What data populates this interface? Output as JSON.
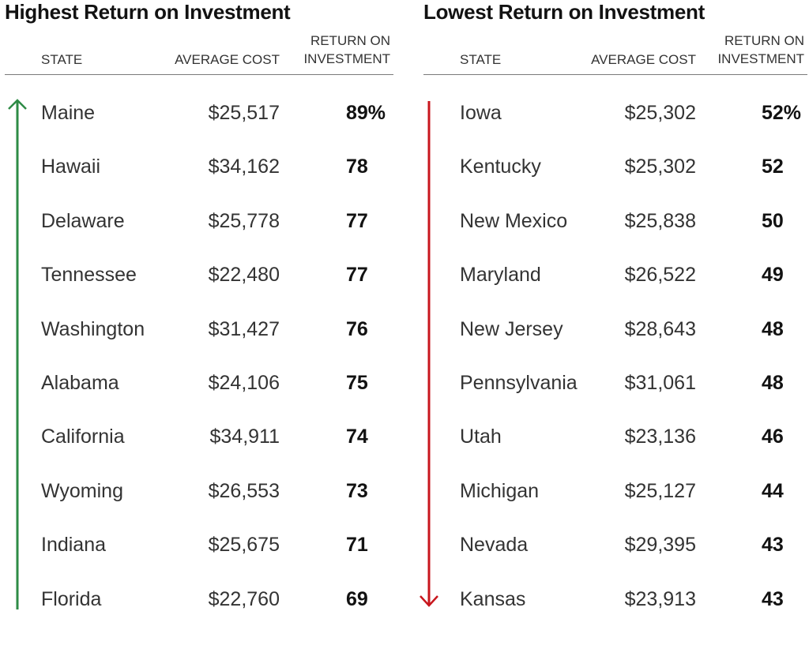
{
  "colors": {
    "up_arrow": "#2e8b46",
    "down_arrow": "#c8161d",
    "text": "#222222",
    "rule": "#7a7a7a"
  },
  "chart_data": [
    {
      "type": "table",
      "title": "Highest Return on Investment",
      "columns": [
        "STATE",
        "AVERAGE COST",
        "RETURN ON INVESTMENT"
      ],
      "arrow": "up-arrow",
      "rows": [
        {
          "state": "Maine",
          "cost": "$25,517",
          "roi": "89%"
        },
        {
          "state": "Hawaii",
          "cost": "$34,162",
          "roi": "78"
        },
        {
          "state": "Delaware",
          "cost": "$25,778",
          "roi": "77"
        },
        {
          "state": "Tennessee",
          "cost": "$22,480",
          "roi": "77"
        },
        {
          "state": "Washington",
          "cost": "$31,427",
          "roi": "76"
        },
        {
          "state": "Alabama",
          "cost": "$24,106",
          "roi": "75"
        },
        {
          "state": "California",
          "cost": "$34,911",
          "roi": "74"
        },
        {
          "state": "Wyoming",
          "cost": "$26,553",
          "roi": "73"
        },
        {
          "state": "Indiana",
          "cost": "$25,675",
          "roi": "71"
        },
        {
          "state": "Florida",
          "cost": "$22,760",
          "roi": "69"
        }
      ]
    },
    {
      "type": "table",
      "title": "Lowest Return on Investment",
      "columns": [
        "STATE",
        "AVERAGE COST",
        "RETURN ON INVESTMENT"
      ],
      "arrow": "down-arrow",
      "rows": [
        {
          "state": "Iowa",
          "cost": "$25,302",
          "roi": "52%"
        },
        {
          "state": "Kentucky",
          "cost": "$25,302",
          "roi": "52"
        },
        {
          "state": "New Mexico",
          "cost": "$25,838",
          "roi": "50"
        },
        {
          "state": "Maryland",
          "cost": "$26,522",
          "roi": "49"
        },
        {
          "state": "New Jersey",
          "cost": "$28,643",
          "roi": "48"
        },
        {
          "state": "Pennsylvania",
          "cost": "$31,061",
          "roi": "48"
        },
        {
          "state": "Utah",
          "cost": "$23,136",
          "roi": "46"
        },
        {
          "state": "Michigan",
          "cost": "$25,127",
          "roi": "44"
        },
        {
          "state": "Nevada",
          "cost": "$29,395",
          "roi": "43"
        },
        {
          "state": "Kansas",
          "cost": "$23,913",
          "roi": "43"
        }
      ]
    }
  ]
}
